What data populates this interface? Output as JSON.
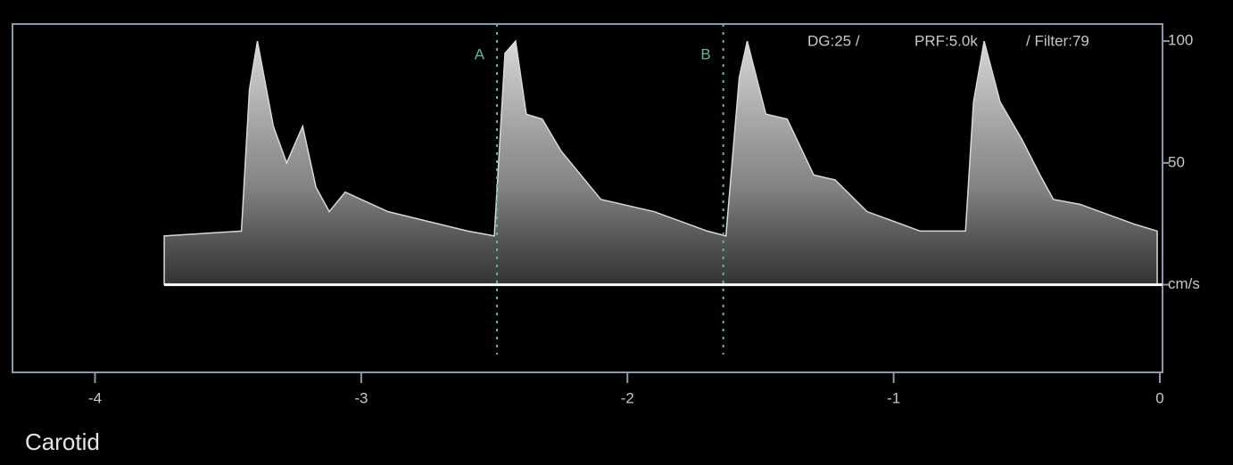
{
  "chart_data": {
    "type": "area",
    "annotations": [
      "DG:25 /",
      "PRF:5.0k",
      "/ Filter:79"
    ],
    "label": "Carotid",
    "x": [
      -3.74,
      -3.45,
      -3.42,
      -3.39,
      -3.33,
      -3.28,
      -3.22,
      -3.17,
      -3.12,
      -3.06,
      -2.9,
      -2.6,
      -2.5,
      -2.46,
      -2.42,
      -2.38,
      -2.32,
      -2.25,
      -2.1,
      -1.9,
      -1.7,
      -1.63,
      -1.58,
      -1.55,
      -1.48,
      -1.4,
      -1.3,
      -1.22,
      -1.1,
      -0.9,
      -0.73,
      -0.7,
      -0.66,
      -0.6,
      -0.52,
      -0.45,
      -0.4,
      -0.3,
      -0.1,
      -0.01
    ],
    "values": [
      20,
      22,
      80,
      100,
      65,
      50,
      65,
      40,
      30,
      38,
      30,
      22,
      20,
      95,
      100,
      70,
      68,
      55,
      35,
      30,
      22,
      20,
      85,
      100,
      70,
      68,
      45,
      43,
      30,
      22,
      22,
      75,
      100,
      75,
      60,
      45,
      35,
      33,
      25,
      22
    ],
    "color": "#d8d8d8",
    "cursors": [
      {
        "label": "A",
        "x": -2.49
      },
      {
        "label": "B",
        "x": -1.64
      }
    ],
    "xlim": [
      -4.31,
      0.01
    ],
    "xticks": [
      -4,
      -3,
      -2,
      -1,
      0
    ],
    "ylim": [
      -36,
      107
    ],
    "yticks": [
      {
        "value": 0,
        "label": "cm/s"
      },
      50,
      100
    ]
  }
}
